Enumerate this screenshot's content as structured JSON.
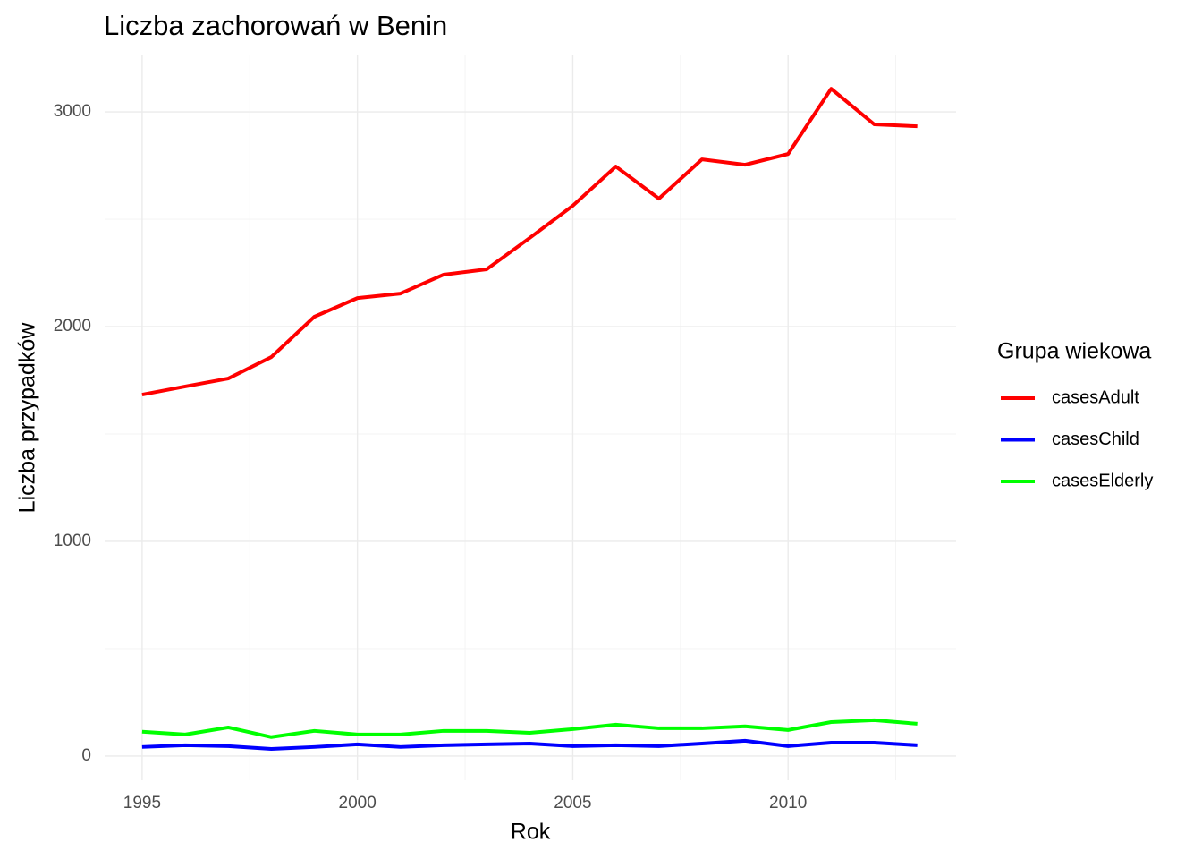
{
  "chart_data": {
    "type": "line",
    "title": "Liczba zachorowań w Benin",
    "x_label": "Rok",
    "y_label": "Liczba przypadków",
    "legend_title": "Grupa wiekowa",
    "legend_position": "right",
    "grid": true,
    "x": [
      1995,
      1996,
      1997,
      1998,
      1999,
      2000,
      2001,
      2002,
      2003,
      2004,
      2005,
      2006,
      2007,
      2008,
      2009,
      2010,
      2011,
      2012,
      2013
    ],
    "series": [
      {
        "name": "casesAdult",
        "color": "#ff0000",
        "values": [
          1683,
          1721,
          1758,
          1858,
          2046,
          2133,
          2154,
          2242,
          2267,
          2413,
          2563,
          2746,
          2596,
          2779,
          2754,
          2804,
          3108,
          2942,
          2933
        ]
      },
      {
        "name": "casesChild",
        "color": "#0000ff",
        "values": [
          42,
          50,
          46,
          33,
          42,
          54,
          42,
          50,
          54,
          58,
          46,
          50,
          46,
          58,
          71,
          46,
          62,
          62,
          50
        ]
      },
      {
        "name": "casesElderly",
        "color": "#00ff00",
        "values": [
          113,
          100,
          133,
          88,
          117,
          100,
          100,
          117,
          117,
          108,
          125,
          146,
          129,
          129,
          138,
          121,
          158,
          167,
          150
        ]
      }
    ],
    "xlim": [
      1994.13,
      2013.9
    ],
    "xticks": [
      1995,
      2000,
      2005,
      2010
    ],
    "ylim": [
      -113,
      3263
    ],
    "yticks": [
      0,
      1000,
      2000,
      3000
    ]
  }
}
